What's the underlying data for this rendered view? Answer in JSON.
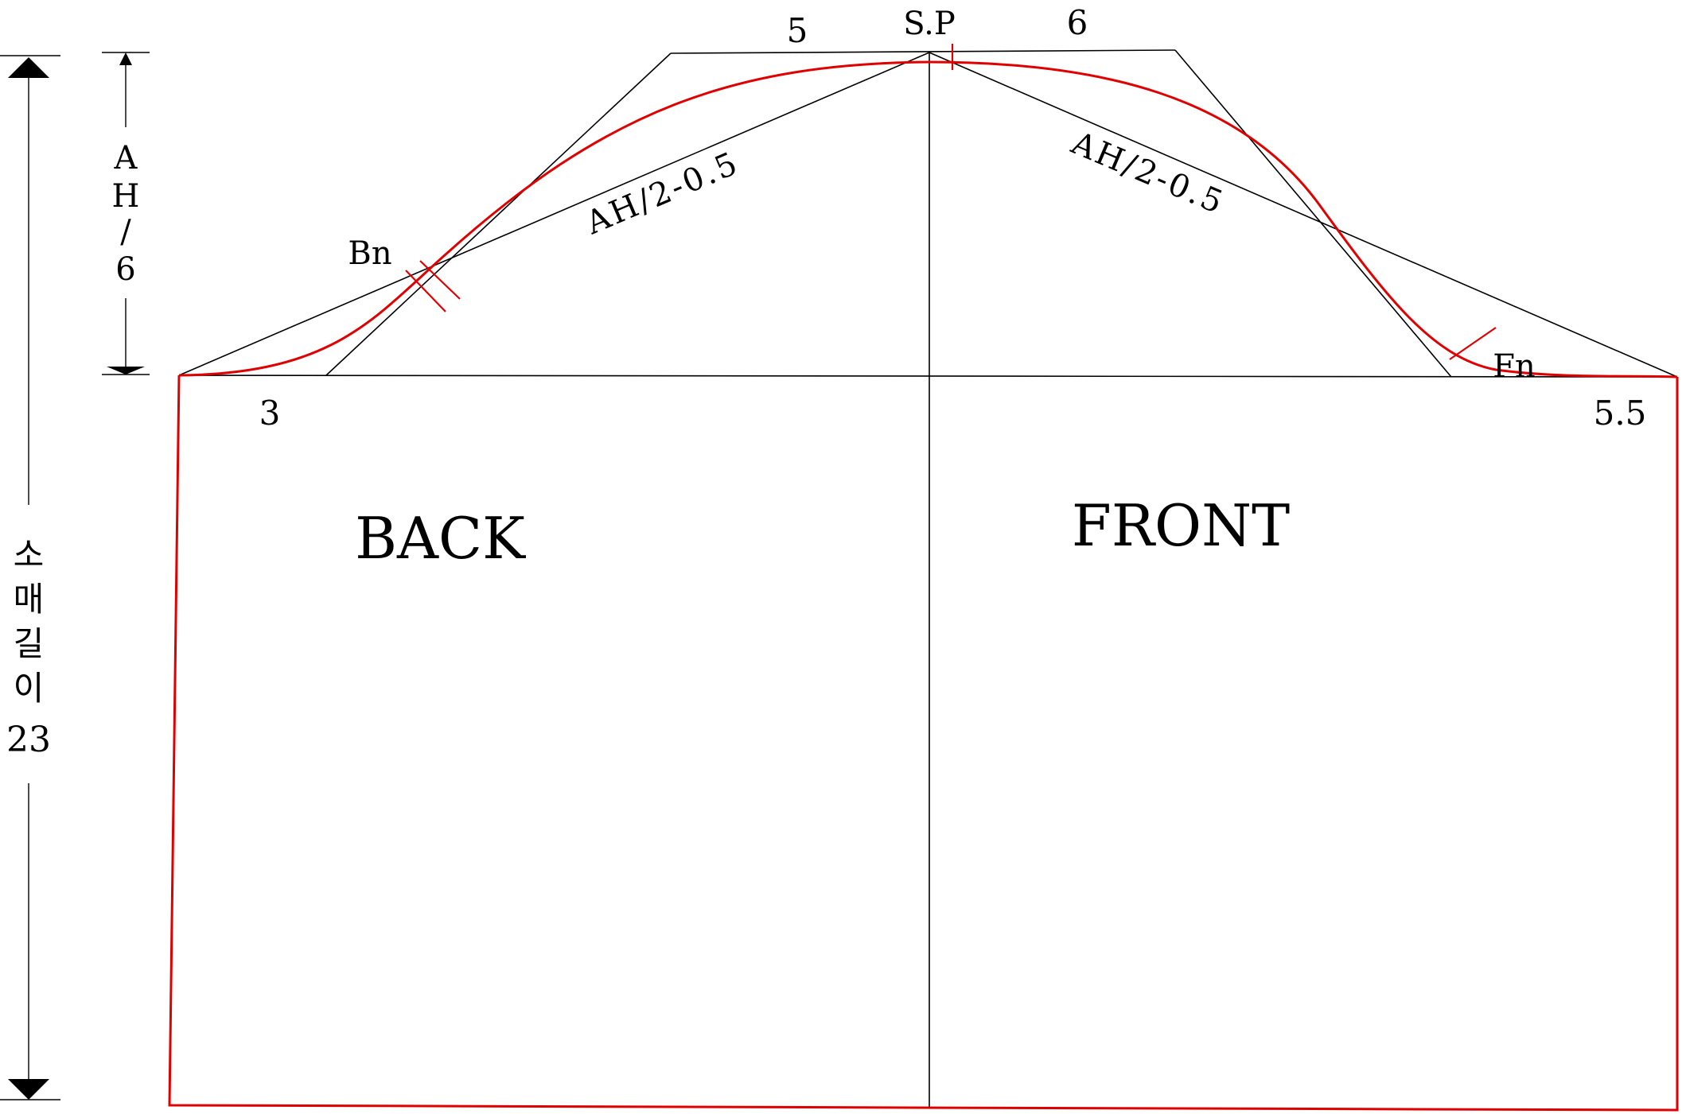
{
  "labels": {
    "shoulder_point": "S.P",
    "back_cap_width": "5",
    "front_cap_width": "6",
    "back_bias_line": "AH/2-0.5",
    "front_bias_line": "AH/2-0.5",
    "back_notch": "Bn",
    "front_notch": "Fn",
    "back_offset": "3",
    "front_offset": "5.5",
    "back_panel": "BACK",
    "front_panel": "FRONT"
  },
  "cap_height_dimension": {
    "chars": [
      "A",
      "H",
      "/",
      "6"
    ]
  },
  "sleeve_length_dimension": {
    "chars": [
      "소",
      "매",
      "길",
      "이"
    ],
    "value": "23"
  },
  "colors": {
    "pattern_outline": "#e10000",
    "construction_lines": "#000000",
    "background": "#ffffff"
  }
}
